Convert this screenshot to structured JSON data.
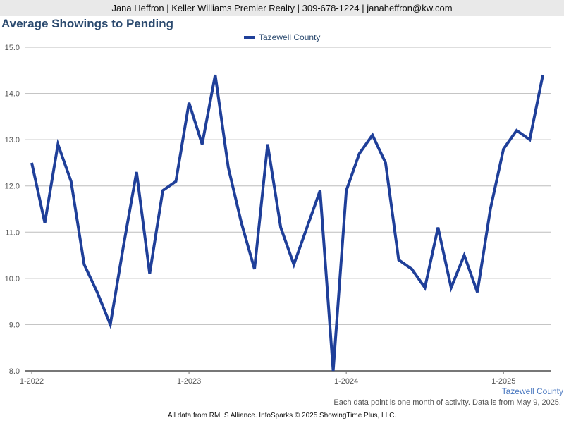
{
  "header": {
    "contact": "Jana Heffron | Keller Williams Premier Realty | 309-678-1224 | janaheffron@kw.com"
  },
  "chart_data": {
    "type": "line",
    "title": "Average Showings to Pending",
    "ylim": [
      8.0,
      15.0
    ],
    "y_ticks": [
      "8.0",
      "9.0",
      "10.0",
      "11.0",
      "12.0",
      "13.0",
      "14.0",
      "15.0"
    ],
    "x_ticks": [
      "1-2022",
      "1-2023",
      "1-2024",
      "1-2025"
    ],
    "legend_position": "top-center",
    "grid": true,
    "line_color": "#1f3f99",
    "series": [
      {
        "name": "Tazewell County",
        "x": [
          "2022-01",
          "2022-02",
          "2022-03",
          "2022-04",
          "2022-05",
          "2022-06",
          "2022-07",
          "2022-08",
          "2022-09",
          "2022-10",
          "2022-11",
          "2022-12",
          "2023-01",
          "2023-02",
          "2023-03",
          "2023-04",
          "2023-05",
          "2023-06",
          "2023-07",
          "2023-08",
          "2023-09",
          "2023-10",
          "2023-11",
          "2023-12",
          "2024-01",
          "2024-02",
          "2024-03",
          "2024-04",
          "2024-05",
          "2024-06",
          "2024-07",
          "2024-08",
          "2024-09",
          "2024-10",
          "2024-11",
          "2024-12",
          "2025-01",
          "2025-02",
          "2025-03",
          "2025-04"
        ],
        "values": [
          12.5,
          11.2,
          12.9,
          12.1,
          10.3,
          9.7,
          9.0,
          10.7,
          12.3,
          10.1,
          11.9,
          12.1,
          13.8,
          12.9,
          14.4,
          12.4,
          11.2,
          10.2,
          12.9,
          11.1,
          10.3,
          11.1,
          11.9,
          8.0,
          11.9,
          12.7,
          13.1,
          12.5,
          10.4,
          10.2,
          9.8,
          11.1,
          9.8,
          10.5,
          9.7,
          11.5,
          12.8,
          13.2,
          13.0,
          14.4
        ]
      }
    ],
    "series_label": "Tazewell County"
  },
  "notes": {
    "footnote": "Each data point is one month of activity. Data is from May 9, 2025.",
    "footer": "All data from RMLS Alliance. InfoSparks © 2025 ShowingTime Plus, LLC."
  }
}
